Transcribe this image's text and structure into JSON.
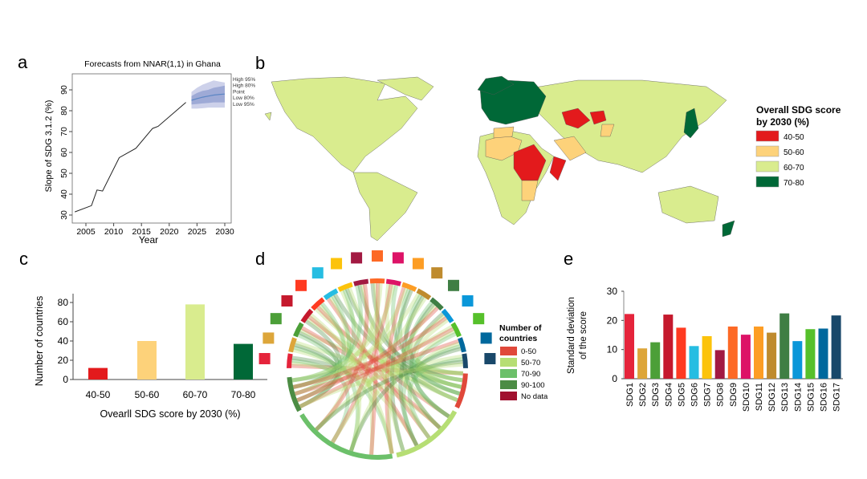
{
  "panel_labels": {
    "a": "a",
    "b": "b",
    "c": "c",
    "d": "d",
    "e": "e"
  },
  "chart_data": [
    {
      "id": "a",
      "type": "line",
      "title": "Forecasts from NNAR(1,1) in Ghana",
      "xlabel": "Year",
      "ylabel": "Slope of SDG 3.1.2 (%)",
      "xlim": [
        2002,
        2031
      ],
      "ylim": [
        29,
        96
      ],
      "xticks": [
        2005,
        2010,
        2015,
        2020,
        2025,
        2030
      ],
      "yticks": [
        30,
        40,
        50,
        60,
        70,
        80,
        90
      ],
      "observed": {
        "x": [
          2003,
          2006,
          2007,
          2008,
          2011,
          2014,
          2017,
          2018,
          2023
        ],
        "y": [
          31.5,
          34.5,
          42,
          41.5,
          57.5,
          62,
          71.5,
          72.5,
          84
        ]
      },
      "forecast": {
        "x": [
          2024,
          2025,
          2026,
          2027,
          2028,
          2029,
          2030
        ],
        "point": [
          85,
          85.8,
          86.5,
          87,
          87.5,
          87.8,
          88
        ],
        "low80": [
          83,
          83.2,
          83.5,
          83.7,
          84,
          84,
          84
        ],
        "high80": [
          87,
          88.5,
          89.5,
          90,
          91,
          91.5,
          92
        ],
        "low95": [
          81,
          81,
          81.2,
          81.5,
          81.5,
          81.5,
          81.5
        ],
        "high95": [
          89,
          91,
          92.5,
          93.5,
          94.5,
          94,
          93.5
        ]
      },
      "legend": [
        "High 95%",
        "High 80%",
        "Point",
        "Low 80%",
        "Low 95%"
      ],
      "colors": {
        "line": "#222222",
        "point": "#5b86c4",
        "band80": "#9eaad6",
        "band95": "#cdd1ea"
      }
    },
    {
      "id": "b",
      "type": "map",
      "legend_title": "Overall SDG score by 2030 (%)",
      "legend": [
        {
          "label": "40-50",
          "color": "#e31a1c"
        },
        {
          "label": "50-60",
          "color": "#fdd27a"
        },
        {
          "label": "60-70",
          "color": "#d9ec8e"
        },
        {
          "label": "70-80",
          "color": "#006837"
        }
      ]
    },
    {
      "id": "c",
      "type": "bar",
      "categories": [
        "40-50",
        "50-60",
        "60-70",
        "70-80"
      ],
      "values": [
        12,
        40,
        78,
        37
      ],
      "colors": [
        "#e31a1c",
        "#fdd27a",
        "#d9ec8e",
        "#006837"
      ],
      "xlabel": "Ovearll SDG score by 2030 (%)",
      "ylabel": "Number of countries",
      "ylim": [
        0,
        90
      ],
      "yticks": [
        0,
        20,
        40,
        60,
        80
      ]
    },
    {
      "id": "d",
      "type": "chord",
      "legend_title": "Number of countries",
      "legend": [
        {
          "label": "0-50",
          "color": "#e0483a"
        },
        {
          "label": "50-70",
          "color": "#b6de74"
        },
        {
          "label": "70-90",
          "color": "#6cc06a"
        },
        {
          "label": "90-100",
          "color": "#4c8c44"
        },
        {
          "label": "No data",
          "color": "#a0102e"
        }
      ]
    },
    {
      "id": "e",
      "type": "bar",
      "categories": [
        "SDG1",
        "SDG2",
        "SDG3",
        "SDG4",
        "SDG5",
        "SDG6",
        "SDG7",
        "SDG8",
        "SDG9",
        "SDG10",
        "SDG11",
        "SDG12",
        "SDG13",
        "SDG14",
        "SDG15",
        "SDG16",
        "SDG17"
      ],
      "values": [
        22.2,
        10.4,
        12.5,
        22.0,
        17.5,
        11.2,
        14.6,
        9.8,
        17.9,
        15.1,
        17.9,
        15.8,
        22.4,
        12.9,
        17.0,
        17.2,
        21.7
      ],
      "colors": [
        "#e5243b",
        "#dda63a",
        "#4c9f38",
        "#c5192d",
        "#ff3a21",
        "#26bde2",
        "#fcc30b",
        "#a21942",
        "#fd6925",
        "#dd1367",
        "#fd9d24",
        "#bf8b2e",
        "#3f7e44",
        "#0a97d9",
        "#56c02b",
        "#00689d",
        "#19486a"
      ],
      "ylabel": "Standard deviation of the score",
      "ylim": [
        0,
        30
      ],
      "yticks": [
        0,
        10,
        20,
        30
      ]
    }
  ]
}
